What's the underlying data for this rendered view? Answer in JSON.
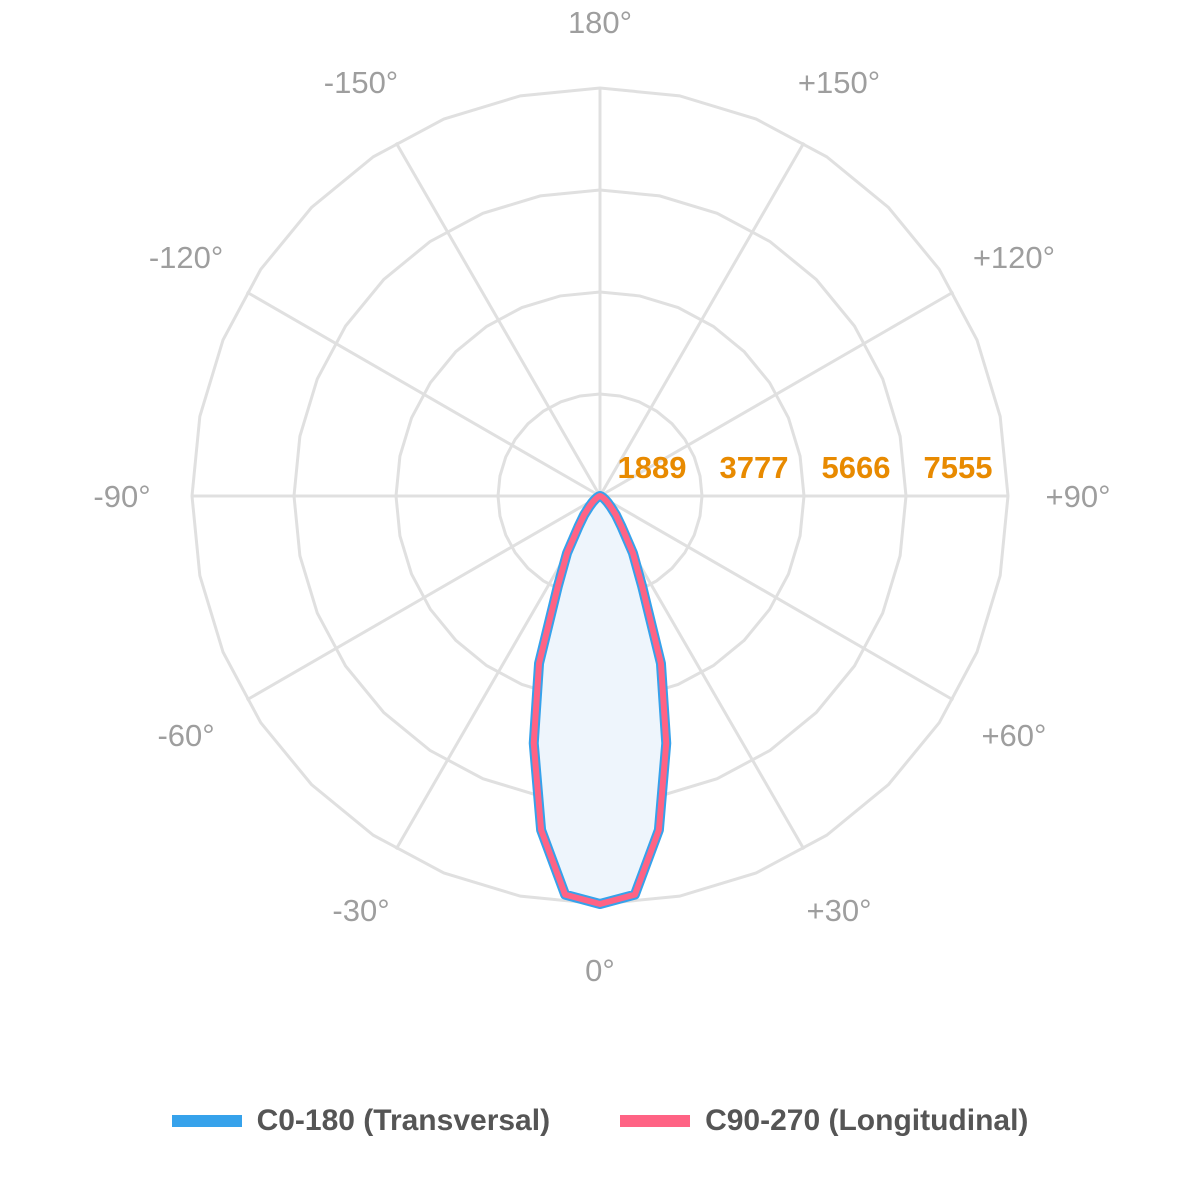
{
  "chart_data": {
    "type": "polar-line",
    "angle_labels": [
      {
        "angle": 180,
        "label": "180°"
      },
      {
        "angle": 150,
        "label": "+150°"
      },
      {
        "angle": -150,
        "label": "-150°"
      },
      {
        "angle": 120,
        "label": "+120°"
      },
      {
        "angle": -120,
        "label": "-120°"
      },
      {
        "angle": 90,
        "label": "+90°"
      },
      {
        "angle": -90,
        "label": "-90°"
      },
      {
        "angle": 60,
        "label": "+60°"
      },
      {
        "angle": -60,
        "label": "-60°"
      },
      {
        "angle": 30,
        "label": "+30°"
      },
      {
        "angle": -30,
        "label": "-30°"
      },
      {
        "angle": 0,
        "label": "0°"
      }
    ],
    "radial_ticks": [
      "1889",
      "3777",
      "5666",
      "7555"
    ],
    "radial_range": [
      0,
      7555
    ],
    "grid": true,
    "legend_position": "bottom",
    "angles": [
      -90,
      -85,
      -80,
      -75,
      -70,
      -65,
      -60,
      -55,
      -50,
      -45,
      -40,
      -35,
      -30,
      -25,
      -20,
      -15,
      -10,
      -5,
      0,
      5,
      10,
      15,
      20,
      25,
      30,
      35,
      40,
      45,
      50,
      55,
      60,
      65,
      70,
      75,
      80,
      85,
      90
    ],
    "series": [
      {
        "name": "C0-180 (Transversal)",
        "color": "#36a2eb",
        "values": [
          0,
          0,
          5,
          10,
          20,
          40,
          70,
          110,
          180,
          280,
          460,
          700,
          1220,
          1850,
          3300,
          4740,
          6280,
          7410,
          7555,
          7410,
          6280,
          4740,
          3300,
          1850,
          1220,
          700,
          460,
          280,
          180,
          110,
          70,
          40,
          20,
          10,
          5,
          0,
          0
        ]
      },
      {
        "name": "C90-270 (Longitudinal)",
        "color": "#ff6384",
        "values": [
          0,
          0,
          5,
          10,
          20,
          40,
          70,
          110,
          180,
          280,
          460,
          700,
          1220,
          1850,
          3300,
          4740,
          6280,
          7410,
          7555,
          7410,
          6280,
          4740,
          3300,
          1850,
          1220,
          700,
          460,
          280,
          180,
          110,
          70,
          40,
          20,
          10,
          5,
          0,
          0
        ]
      }
    ],
    "fill_color": "#eef5fc",
    "grid_color": "#e0e0e0",
    "tick_color": "#e88a00"
  }
}
